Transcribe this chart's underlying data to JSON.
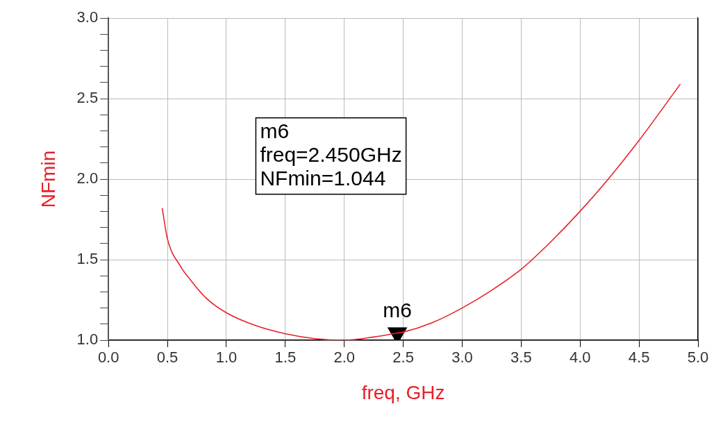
{
  "chart_data": {
    "type": "line",
    "xlabel": "freq, GHz",
    "ylabel": "NFmin",
    "x": [
      0.456,
      0.5,
      0.61,
      0.7,
      0.83,
      1.0,
      1.25,
      1.5,
      1.75,
      2.0,
      2.25,
      2.45,
      2.5,
      2.75,
      3.0,
      3.25,
      3.5,
      3.75,
      4.0,
      4.25,
      4.5,
      4.85
    ],
    "series": [
      {
        "color": "#e8202a",
        "values": [
          1.82,
          1.63,
          1.46,
          1.37,
          1.26,
          1.17,
          1.09,
          1.04,
          1.01,
          1.0,
          1.02,
          1.044,
          1.05,
          1.11,
          1.2,
          1.31,
          1.44,
          1.61,
          1.8,
          2.01,
          2.24,
          2.59
        ]
      },
      {
        "type": "scatter",
        "marker": "triangle",
        "color": "#000000",
        "x": [
          2.45
        ],
        "values": [
          1.044
        ]
      }
    ],
    "xlim": [
      0,
      5
    ],
    "xticks": [
      {
        "value": 0,
        "label": "0.0"
      },
      {
        "value": 0.5,
        "label": "0.5"
      },
      {
        "value": 1,
        "label": "1.0"
      },
      {
        "value": 1.5,
        "label": "1.5"
      },
      {
        "value": 2,
        "label": "2.0"
      },
      {
        "value": 2.5,
        "label": "2.5"
      },
      {
        "value": 3,
        "label": "3.0"
      },
      {
        "value": 3.5,
        "label": "3.5"
      },
      {
        "value": 4,
        "label": "4.0"
      },
      {
        "value": 4.5,
        "label": "4.5"
      },
      {
        "value": 5,
        "label": "5.0"
      }
    ],
    "ylim": [
      1,
      3
    ],
    "yticks": [
      {
        "value": 1,
        "label": "1.0"
      },
      {
        "value": 1.1,
        "label": null
      },
      {
        "value": 1.2,
        "label": null
      },
      {
        "value": 1.3,
        "label": null
      },
      {
        "value": 1.4,
        "label": null
      },
      {
        "value": 1.5,
        "label": "1.5"
      },
      {
        "value": 1.6,
        "label": null
      },
      {
        "value": 1.7,
        "label": null
      },
      {
        "value": 1.8,
        "label": null
      },
      {
        "value": 1.9,
        "label": null
      },
      {
        "value": 2,
        "label": "2.0"
      },
      {
        "value": 2.1,
        "label": null
      },
      {
        "value": 2.2,
        "label": null
      },
      {
        "value": 2.3,
        "label": null
      },
      {
        "value": 2.4,
        "label": null
      },
      {
        "value": 2.5,
        "label": "2.5"
      },
      {
        "value": 2.6,
        "label": null
      },
      {
        "value": 2.7,
        "label": null
      },
      {
        "value": 2.8,
        "label": null
      },
      {
        "value": 2.9,
        "label": null
      },
      {
        "value": 3,
        "label": "3.0"
      }
    ],
    "grid": true,
    "legend": false,
    "marker": "none",
    "line_style": "solid",
    "annotations": [
      {
        "text": "m6",
        "x": 2.45,
        "y": 1.044
      },
      "m6\nfreq=2.450GHz\nNFmin=1.044"
    ]
  }
}
